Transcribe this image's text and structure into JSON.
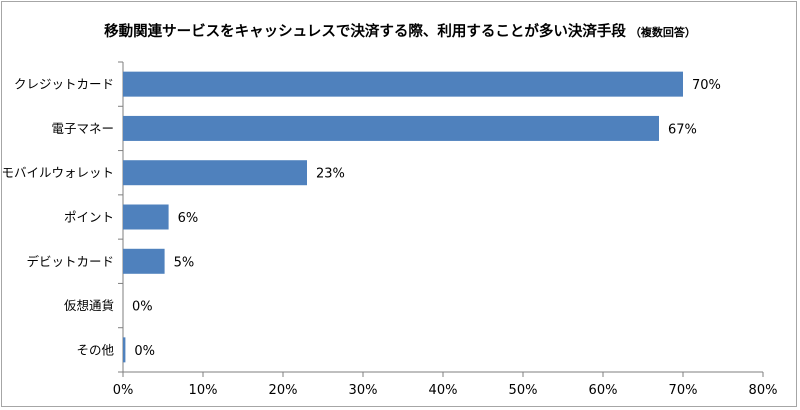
{
  "chart_data": {
    "type": "bar",
    "orientation": "horizontal",
    "title": "移動関連サービスをキャッシュレスで決済する際、利用することが多い決済手段",
    "subtitle": "（複数回答）",
    "categories": [
      "クレジットカード",
      "電子マネー",
      "モバイルウォレット",
      "ポイント",
      "デビットカード",
      "仮想通貨",
      "その他"
    ],
    "values": [
      70,
      67,
      23,
      6,
      5,
      0,
      0
    ],
    "value_labels": [
      "70%",
      "67%",
      "23%",
      "6%",
      "5%",
      "0%",
      "0%"
    ],
    "bar_widths_actual": [
      70,
      67,
      23,
      5.7,
      5.2,
      0,
      0.3
    ],
    "xlim": [
      0,
      80
    ],
    "x_ticks": [
      0,
      10,
      20,
      30,
      40,
      50,
      60,
      70,
      80
    ],
    "x_tick_labels": [
      "0%",
      "10%",
      "20%",
      "30%",
      "40%",
      "50%",
      "60%",
      "70%",
      "80%"
    ],
    "xlabel": "",
    "ylabel": "",
    "grid": false,
    "legend": "none",
    "bar_color": "#4f81bd"
  }
}
